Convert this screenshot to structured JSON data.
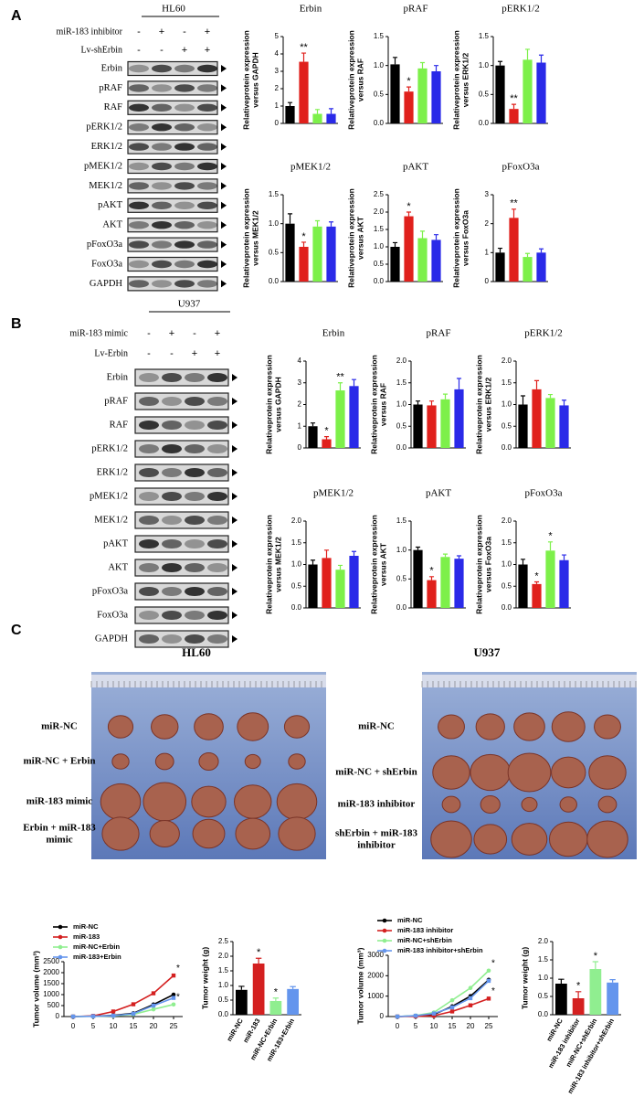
{
  "panel_labels": [
    "A",
    "B",
    "C"
  ],
  "blots": [
    {
      "cell": "HL60",
      "treatments": [
        {
          "name": "miR-183 inhibitor",
          "signs": [
            "-",
            "+",
            "-",
            "+"
          ]
        },
        {
          "name": "Lv-shErbin",
          "signs": [
            "-",
            "-",
            "+",
            "+"
          ]
        }
      ],
      "proteins": [
        "Erbin",
        "pRAF",
        "RAF",
        "pERK1/2",
        "ERK1/2",
        "pMEK1/2",
        "MEK1/2",
        "pAKT",
        "AKT",
        "pFoxO3a",
        "FoxO3a",
        "GAPDH"
      ]
    },
    {
      "cell": "U937",
      "treatments": [
        {
          "name": "miR-183 mimic",
          "signs": [
            "-",
            "+",
            "-",
            "+"
          ]
        },
        {
          "name": "Lv-Erbin",
          "signs": [
            "-",
            "-",
            "+",
            "+"
          ]
        }
      ],
      "proteins": [
        "Erbin",
        "pRAF",
        "RAF",
        "pERK1/2",
        "ERK1/2",
        "pMEK1/2",
        "MEK1/2",
        "pAKT",
        "AKT",
        "pFoxO3a",
        "FoxO3a",
        "GAPDH"
      ]
    }
  ],
  "photos": [
    {
      "title": "HL60",
      "groups": [
        [
          "miR-NC"
        ],
        [
          "miR-NC + Erbin"
        ],
        [
          "miR-183 mimic"
        ],
        [
          "Erbin + miR-183",
          "mimic"
        ]
      ]
    },
    {
      "title": "U937",
      "groups": [
        [
          "miR-NC"
        ],
        [
          "miR-NC + shErbin"
        ],
        [
          "miR-183 inhibitor"
        ],
        [
          "shErbin + miR-183",
          "inhibitor"
        ]
      ]
    }
  ],
  "chart_data": [
    {
      "type": "bar",
      "title": "Erbin",
      "y_label": [
        "Relativeprotein expression",
        "versus GAPDH"
      ],
      "ylim": [
        0,
        5
      ],
      "yticks": [
        0,
        1,
        2,
        3,
        4,
        5
      ],
      "colors": [
        "#000000",
        "#e0201c",
        "#7df04a",
        "#2a2ae8"
      ],
      "values": [
        1.0,
        3.55,
        0.55,
        0.55
      ],
      "errors": [
        0.2,
        0.5,
        0.25,
        0.3
      ],
      "annotations": [
        null,
        "**",
        null,
        null
      ]
    },
    {
      "type": "bar",
      "title": "pRAF",
      "y_label": [
        "Relativeprotein expression",
        "versus RAF"
      ],
      "ylim": [
        0,
        1.5
      ],
      "yticks": [
        {
          "value": 0,
          "label": "0.0"
        },
        0.5,
        {
          "value": 1,
          "label": "1.0"
        },
        1.5
      ],
      "colors": [
        "#000000",
        "#e0201c",
        "#7df04a",
        "#2a2ae8"
      ],
      "values": [
        1.02,
        0.55,
        0.95,
        0.9
      ],
      "errors": [
        0.12,
        0.08,
        0.1,
        0.1
      ],
      "annotations": [
        null,
        "*",
        null,
        null
      ]
    },
    {
      "type": "bar",
      "title": "pERK1/2",
      "y_label": [
        "Relativeprotein expression",
        "versus ERK1/2"
      ],
      "ylim": [
        0,
        1.5
      ],
      "yticks": [
        {
          "value": 0,
          "label": "0.0"
        },
        0.5,
        {
          "value": 1,
          "label": "1.0"
        },
        1.5
      ],
      "colors": [
        "#000000",
        "#e0201c",
        "#7df04a",
        "#2a2ae8"
      ],
      "values": [
        1.0,
        0.25,
        1.1,
        1.05
      ],
      "errors": [
        0.07,
        0.08,
        0.18,
        0.13
      ],
      "annotations": [
        null,
        "**",
        null,
        null
      ]
    },
    {
      "type": "bar",
      "title": "pMEK1/2",
      "y_label": [
        "Relativeprotein expression",
        "versus MEK1/2"
      ],
      "ylim": [
        0,
        1.5
      ],
      "yticks": [
        {
          "value": 0,
          "label": "0.0"
        },
        0.5,
        {
          "value": 1,
          "label": "1.0"
        },
        1.5
      ],
      "colors": [
        "#000000",
        "#e0201c",
        "#7df04a",
        "#2a2ae8"
      ],
      "values": [
        1.0,
        0.6,
        0.95,
        0.95
      ],
      "errors": [
        0.17,
        0.08,
        0.1,
        0.08
      ],
      "annotations": [
        null,
        "*",
        null,
        null
      ]
    },
    {
      "type": "bar",
      "title": "pAKT",
      "y_label": [
        "Relativeprotein expression",
        "versus AKT"
      ],
      "ylim": [
        0,
        2.5
      ],
      "yticks": [
        {
          "value": 0,
          "label": "0.0"
        },
        0.5,
        {
          "value": 1,
          "label": "1.0"
        },
        1.5,
        {
          "value": 2,
          "label": "2.0"
        },
        2.5
      ],
      "colors": [
        "#000000",
        "#e0201c",
        "#7df04a",
        "#2a2ae8"
      ],
      "values": [
        1.0,
        1.88,
        1.25,
        1.2
      ],
      "errors": [
        0.12,
        0.12,
        0.2,
        0.15
      ],
      "annotations": [
        null,
        "*",
        null,
        null
      ]
    },
    {
      "type": "bar",
      "title": "pFoxO3a",
      "y_label": [
        "Relativeprotein expression",
        "versus FoxO3a"
      ],
      "ylim": [
        0,
        3
      ],
      "yticks": [
        0,
        1,
        2,
        3
      ],
      "colors": [
        "#000000",
        "#e0201c",
        "#7df04a",
        "#2a2ae8"
      ],
      "values": [
        1.0,
        2.2,
        0.85,
        1.0
      ],
      "errors": [
        0.15,
        0.3,
        0.12,
        0.13
      ],
      "annotations": [
        null,
        "**",
        null,
        null
      ]
    },
    {
      "type": "bar",
      "title": "Erbin",
      "y_label": [
        "Relativeprotein expression",
        "versus GAPDH"
      ],
      "ylim": [
        0,
        4
      ],
      "yticks": [
        0,
        1,
        2,
        3,
        4
      ],
      "colors": [
        "#000000",
        "#e0201c",
        "#7df04a",
        "#2a2ae8"
      ],
      "values": [
        1.0,
        0.4,
        2.65,
        2.85
      ],
      "errors": [
        0.15,
        0.12,
        0.35,
        0.3
      ],
      "annotations": [
        null,
        "*",
        "**",
        null
      ]
    },
    {
      "type": "bar",
      "title": "pRAF",
      "y_label": [
        "Relativeprotein expression",
        "versus RAF"
      ],
      "ylim": [
        0,
        2
      ],
      "yticks": [
        {
          "value": 0,
          "label": "0.0"
        },
        0.5,
        {
          "value": 1,
          "label": "1.0"
        },
        1.5,
        {
          "value": 2,
          "label": "2.0"
        }
      ],
      "colors": [
        "#000000",
        "#e0201c",
        "#7df04a",
        "#2a2ae8"
      ],
      "values": [
        1.0,
        0.98,
        1.12,
        1.35
      ],
      "errors": [
        0.08,
        0.1,
        0.12,
        0.25
      ],
      "annotations": [
        null,
        null,
        null,
        null
      ]
    },
    {
      "type": "bar",
      "title": "pERK1/2",
      "y_label": [
        "Relativeprotein expression",
        "versus ERK1/2"
      ],
      "ylim": [
        0,
        2
      ],
      "yticks": [
        {
          "value": 0,
          "label": "0.0"
        },
        0.5,
        {
          "value": 1,
          "label": "1.0"
        },
        1.5,
        {
          "value": 2,
          "label": "2.0"
        }
      ],
      "colors": [
        "#000000",
        "#e0201c",
        "#7df04a",
        "#2a2ae8"
      ],
      "values": [
        1.0,
        1.35,
        1.15,
        0.98
      ],
      "errors": [
        0.2,
        0.2,
        0.08,
        0.12
      ],
      "annotations": [
        null,
        null,
        null,
        null
      ]
    },
    {
      "type": "bar",
      "title": "pMEK1/2",
      "y_label": [
        "Relativeprotein expression",
        "versus MEK1/2"
      ],
      "ylim": [
        0,
        2
      ],
      "yticks": [
        {
          "value": 0,
          "label": "0.0"
        },
        0.5,
        {
          "value": 1,
          "label": "1.0"
        },
        1.5,
        {
          "value": 2,
          "label": "2.0"
        }
      ],
      "colors": [
        "#000000",
        "#e0201c",
        "#7df04a",
        "#2a2ae8"
      ],
      "values": [
        1.0,
        1.15,
        0.88,
        1.2
      ],
      "errors": [
        0.1,
        0.18,
        0.1,
        0.1
      ],
      "annotations": [
        null,
        null,
        null,
        null
      ]
    },
    {
      "type": "bar",
      "title": "pAKT",
      "y_label": [
        "Relativeprotein expression",
        "versus AKT"
      ],
      "ylim": [
        0,
        1.5
      ],
      "yticks": [
        {
          "value": 0,
          "label": "0.0"
        },
        0.5,
        {
          "value": 1,
          "label": "1.0"
        },
        1.5
      ],
      "colors": [
        "#000000",
        "#e0201c",
        "#7df04a",
        "#2a2ae8"
      ],
      "values": [
        1.0,
        0.48,
        0.88,
        0.85
      ],
      "errors": [
        0.05,
        0.06,
        0.05,
        0.05
      ],
      "annotations": [
        null,
        "*",
        null,
        null
      ]
    },
    {
      "type": "bar",
      "title": "pFoxO3a",
      "y_label": [
        "Relativeprotein expression",
        "versus FoxO3a"
      ],
      "ylim": [
        0,
        2
      ],
      "yticks": [
        {
          "value": 0,
          "label": "0.0"
        },
        0.5,
        {
          "value": 1,
          "label": "1.0"
        },
        1.5,
        {
          "value": 2,
          "label": "2.0"
        }
      ],
      "colors": [
        "#000000",
        "#e0201c",
        "#7df04a",
        "#2a2ae8"
      ],
      "values": [
        1.0,
        0.55,
        1.32,
        1.1
      ],
      "errors": [
        0.12,
        0.05,
        0.2,
        0.12
      ],
      "annotations": [
        null,
        "*",
        "*",
        null
      ]
    },
    {
      "type": "line",
      "y_label": [
        "Tumor volume (mm³)"
      ],
      "x": [
        0,
        5,
        10,
        15,
        20,
        25
      ],
      "xlim": [
        0,
        25
      ],
      "xticks": [
        0,
        5,
        10,
        15,
        20,
        25
      ],
      "ylim": [
        0,
        2500
      ],
      "yticks": [
        0,
        500,
        1000,
        1500,
        2000,
        2500
      ],
      "series": [
        {
          "name": "miR-NC",
          "color": "#000000",
          "values": [
            0,
            20,
            50,
            150,
            550,
            1000
          ]
        },
        {
          "name": "miR-183",
          "color": "#d42020",
          "values": [
            0,
            30,
            230,
            560,
            1060,
            1870
          ],
          "annotation": "*"
        },
        {
          "name": "miR-NC+Erbin",
          "color": "#90ee90",
          "values": [
            0,
            10,
            30,
            100,
            330,
            550
          ],
          "annotation": "*"
        },
        {
          "name": "miR-183+Erbin",
          "color": "#6495ed",
          "values": [
            0,
            15,
            40,
            130,
            500,
            850
          ]
        }
      ]
    },
    {
      "type": "bar",
      "y_label": [
        "Tumor weight (g)"
      ],
      "categories": [
        "miR-NC",
        "miR-183",
        "miR-NC+Erbin",
        "miR-183+Erbin"
      ],
      "ylim": [
        0,
        2.5
      ],
      "yticks": [
        {
          "value": 0,
          "label": "0.0"
        },
        0.5,
        {
          "value": 1,
          "label": "1.0"
        },
        1.5,
        {
          "value": 2,
          "label": "2.0"
        },
        2.5
      ],
      "colors": [
        "#000000",
        "#d42020",
        "#90ee90",
        "#6495ed"
      ],
      "values": [
        0.85,
        1.75,
        0.47,
        0.88
      ],
      "errors": [
        0.12,
        0.18,
        0.1,
        0.08
      ],
      "annotations": [
        null,
        "*",
        "*",
        null
      ]
    },
    {
      "type": "line",
      "y_label": [
        "Tumor volume (mm³)"
      ],
      "x": [
        0,
        5,
        10,
        15,
        20,
        25
      ],
      "xlim": [
        0,
        25
      ],
      "xticks": [
        0,
        5,
        10,
        15,
        20,
        25
      ],
      "ylim": [
        0,
        3000
      ],
      "yticks": [
        0,
        1000,
        2000,
        3000
      ],
      "series": [
        {
          "name": "miR-NC",
          "color": "#000000",
          "values": [
            0,
            30,
            100,
            500,
            1000,
            1800
          ]
        },
        {
          "name": "miR-183 inhibitor",
          "color": "#d42020",
          "values": [
            0,
            10,
            40,
            250,
            550,
            880
          ],
          "annotation": "*"
        },
        {
          "name": "miR-NC+shErbin",
          "color": "#90ee90",
          "values": [
            0,
            50,
            200,
            800,
            1400,
            2250
          ],
          "annotation": "*"
        },
        {
          "name": "miR-183 inhibitor+shErbin",
          "color": "#6495ed",
          "values": [
            0,
            40,
            150,
            450,
            900,
            1750
          ]
        }
      ]
    },
    {
      "type": "bar",
      "y_label": [
        "Tumor weight (g)"
      ],
      "categories": [
        "miR-NC",
        "miR-183 inhibitor",
        "miR-NC+shErbin",
        "miR-183 inhibitor+shErbin"
      ],
      "ylim": [
        0,
        2
      ],
      "yticks": [
        {
          "value": 0,
          "label": "0.0"
        },
        0.5,
        {
          "value": 1,
          "label": "1.0"
        },
        1.5,
        {
          "value": 2,
          "label": "2.0"
        }
      ],
      "colors": [
        "#000000",
        "#d42020",
        "#90ee90",
        "#6495ed"
      ],
      "values": [
        0.85,
        0.45,
        1.25,
        0.88
      ],
      "errors": [
        0.12,
        0.18,
        0.2,
        0.08
      ],
      "annotations": [
        null,
        "*",
        "*",
        null
      ]
    }
  ]
}
